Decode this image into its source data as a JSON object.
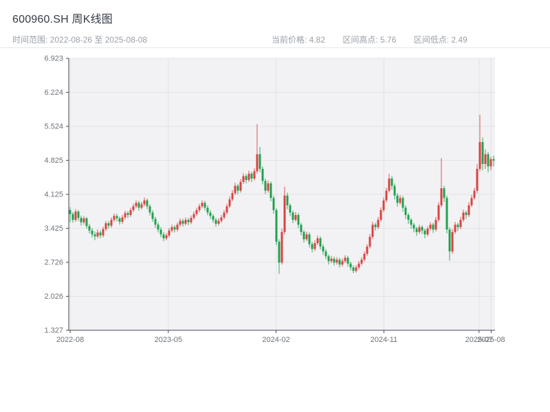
{
  "header": {
    "title": "600960.SH 周K线图",
    "time_range": "时间范围: 2022-08-26 至 2025-08-08",
    "current_price": "当前价格: 4.82",
    "range_high": "区间高点: 5.76",
    "range_low": "区间低点: 2.49"
  },
  "chart_data": {
    "type": "candlestick",
    "title": "600960.SH 周K线图",
    "symbol": "600960.SH",
    "period": "weekly",
    "start_date": "2022-08-26",
    "end_date": "2025-08-08",
    "current_price": 4.82,
    "range_high": 5.76,
    "range_low": 2.49,
    "xlabel": "",
    "ylabel": "",
    "grid": true,
    "legend": "none",
    "ylim": [
      1.327,
      6.923
    ],
    "y_ticks": [
      6.923,
      6.224,
      5.524,
      4.825,
      4.125,
      3.425,
      2.726,
      2.026,
      1.327
    ],
    "x_ticks": [
      {
        "label": "2022-08",
        "week": 0
      },
      {
        "label": "2023-05",
        "week": 35.7
      },
      {
        "label": "2024-02",
        "week": 74.9
      },
      {
        "label": "2024-11",
        "week": 114.1
      },
      {
        "label": "2025-07",
        "week": 148.7
      },
      {
        "label": "2025-08",
        "week": 153.1
      }
    ],
    "colors": {
      "up": "#da4242",
      "down": "#1fa14d",
      "background": "#f2f2f4",
      "grid": "#e2e2e6",
      "axis": "#44484e",
      "tick_label": "#6d7278"
    },
    "candles_format": [
      "open",
      "high",
      "low",
      "close"
    ],
    "candles": [
      [
        3.8,
        3.86,
        3.55,
        3.72
      ],
      [
        3.72,
        3.76,
        3.54,
        3.6
      ],
      [
        3.6,
        3.82,
        3.56,
        3.77
      ],
      [
        3.77,
        3.8,
        3.58,
        3.64
      ],
      [
        3.64,
        3.69,
        3.48,
        3.55
      ],
      [
        3.55,
        3.68,
        3.5,
        3.63
      ],
      [
        3.63,
        3.66,
        3.42,
        3.47
      ],
      [
        3.47,
        3.52,
        3.32,
        3.38
      ],
      [
        3.38,
        3.43,
        3.24,
        3.3
      ],
      [
        3.3,
        3.36,
        3.18,
        3.26
      ],
      [
        3.26,
        3.4,
        3.22,
        3.34
      ],
      [
        3.34,
        3.38,
        3.22,
        3.28
      ],
      [
        3.28,
        3.46,
        3.24,
        3.41
      ],
      [
        3.41,
        3.58,
        3.37,
        3.53
      ],
      [
        3.53,
        3.57,
        3.42,
        3.48
      ],
      [
        3.48,
        3.65,
        3.44,
        3.6
      ],
      [
        3.6,
        3.73,
        3.56,
        3.68
      ],
      [
        3.68,
        3.72,
        3.57,
        3.63
      ],
      [
        3.63,
        3.67,
        3.5,
        3.56
      ],
      [
        3.56,
        3.7,
        3.52,
        3.65
      ],
      [
        3.65,
        3.79,
        3.61,
        3.74
      ],
      [
        3.74,
        3.78,
        3.64,
        3.7
      ],
      [
        3.7,
        3.85,
        3.66,
        3.8
      ],
      [
        3.8,
        3.93,
        3.76,
        3.88
      ],
      [
        3.88,
        4.0,
        3.84,
        3.95
      ],
      [
        3.95,
        3.99,
        3.79,
        3.85
      ],
      [
        3.85,
        3.97,
        3.81,
        3.92
      ],
      [
        3.92,
        4.06,
        3.88,
        4.0
      ],
      [
        4.0,
        4.04,
        3.82,
        3.88
      ],
      [
        3.88,
        3.92,
        3.69,
        3.75
      ],
      [
        3.75,
        3.8,
        3.56,
        3.62
      ],
      [
        3.62,
        3.66,
        3.44,
        3.5
      ],
      [
        3.5,
        3.55,
        3.34,
        3.4
      ],
      [
        3.4,
        3.45,
        3.24,
        3.3
      ],
      [
        3.3,
        3.35,
        3.16,
        3.22
      ],
      [
        3.22,
        3.33,
        3.18,
        3.28
      ],
      [
        3.28,
        3.43,
        3.24,
        3.38
      ],
      [
        3.38,
        3.5,
        3.34,
        3.45
      ],
      [
        3.45,
        3.49,
        3.34,
        3.4
      ],
      [
        3.4,
        3.55,
        3.36,
        3.5
      ],
      [
        3.5,
        3.63,
        3.46,
        3.58
      ],
      [
        3.58,
        3.62,
        3.46,
        3.52
      ],
      [
        3.52,
        3.65,
        3.48,
        3.6
      ],
      [
        3.6,
        3.64,
        3.49,
        3.55
      ],
      [
        3.55,
        3.69,
        3.51,
        3.64
      ],
      [
        3.64,
        3.77,
        3.6,
        3.72
      ],
      [
        3.72,
        3.85,
        3.68,
        3.8
      ],
      [
        3.8,
        3.93,
        3.76,
        3.88
      ],
      [
        3.88,
        4.0,
        3.84,
        3.95
      ],
      [
        3.95,
        3.99,
        3.79,
        3.85
      ],
      [
        3.85,
        3.9,
        3.69,
        3.75
      ],
      [
        3.75,
        3.8,
        3.62,
        3.68
      ],
      [
        3.68,
        3.72,
        3.54,
        3.6
      ],
      [
        3.6,
        3.64,
        3.46,
        3.52
      ],
      [
        3.52,
        3.63,
        3.48,
        3.58
      ],
      [
        3.58,
        3.7,
        3.54,
        3.65
      ],
      [
        3.65,
        3.8,
        3.61,
        3.75
      ],
      [
        3.75,
        3.93,
        3.71,
        3.88
      ],
      [
        3.88,
        4.08,
        3.84,
        4.02
      ],
      [
        4.02,
        4.21,
        3.98,
        4.15
      ],
      [
        4.15,
        4.36,
        4.11,
        4.3
      ],
      [
        4.3,
        4.34,
        4.13,
        4.2
      ],
      [
        4.2,
        4.44,
        4.16,
        4.38
      ],
      [
        4.38,
        4.56,
        4.34,
        4.5
      ],
      [
        4.5,
        4.54,
        4.35,
        4.42
      ],
      [
        4.42,
        4.61,
        4.38,
        4.55
      ],
      [
        4.55,
        4.59,
        4.38,
        4.45
      ],
      [
        4.45,
        4.66,
        4.41,
        4.6
      ],
      [
        4.6,
        5.57,
        4.55,
        4.95
      ],
      [
        4.95,
        5.1,
        4.58,
        4.65
      ],
      [
        4.65,
        4.7,
        4.33,
        4.4
      ],
      [
        4.4,
        4.45,
        4.13,
        4.2
      ],
      [
        4.2,
        4.41,
        4.16,
        4.35
      ],
      [
        4.35,
        4.39,
        3.98,
        4.05
      ],
      [
        4.05,
        4.1,
        3.73,
        3.8
      ],
      [
        3.8,
        3.84,
        3.08,
        3.15
      ],
      [
        3.15,
        3.2,
        2.49,
        2.72
      ],
      [
        2.72,
        3.42,
        2.68,
        3.35
      ],
      [
        3.35,
        4.28,
        3.3,
        4.1
      ],
      [
        4.1,
        4.16,
        3.82,
        3.9
      ],
      [
        3.9,
        3.94,
        3.68,
        3.75
      ],
      [
        3.75,
        3.79,
        3.53,
        3.6
      ],
      [
        3.6,
        3.76,
        3.56,
        3.7
      ],
      [
        3.7,
        3.74,
        3.43,
        3.5
      ],
      [
        3.5,
        3.54,
        3.28,
        3.35
      ],
      [
        3.35,
        3.39,
        3.13,
        3.2
      ],
      [
        3.2,
        3.36,
        3.16,
        3.3
      ],
      [
        3.3,
        3.34,
        3.03,
        3.1
      ],
      [
        3.1,
        3.15,
        2.93,
        3.0
      ],
      [
        3.0,
        3.18,
        2.96,
        3.12
      ],
      [
        3.12,
        3.28,
        3.08,
        3.22
      ],
      [
        3.22,
        3.26,
        2.99,
        3.05
      ],
      [
        3.05,
        3.1,
        2.88,
        2.95
      ],
      [
        2.95,
        3.0,
        2.79,
        2.85
      ],
      [
        2.85,
        2.89,
        2.68,
        2.75
      ],
      [
        2.75,
        2.86,
        2.71,
        2.8
      ],
      [
        2.8,
        2.84,
        2.66,
        2.72
      ],
      [
        2.72,
        2.83,
        2.68,
        2.78
      ],
      [
        2.78,
        2.82,
        2.62,
        2.68
      ],
      [
        2.68,
        2.8,
        2.64,
        2.75
      ],
      [
        2.75,
        2.87,
        2.71,
        2.82
      ],
      [
        2.82,
        2.86,
        2.64,
        2.7
      ],
      [
        2.7,
        2.74,
        2.56,
        2.62
      ],
      [
        2.62,
        2.66,
        2.5,
        2.55
      ],
      [
        2.55,
        2.67,
        2.51,
        2.62
      ],
      [
        2.62,
        2.75,
        2.58,
        2.7
      ],
      [
        2.7,
        2.83,
        2.66,
        2.78
      ],
      [
        2.78,
        2.95,
        2.74,
        2.9
      ],
      [
        2.9,
        3.1,
        2.86,
        3.05
      ],
      [
        3.05,
        3.31,
        3.01,
        3.25
      ],
      [
        3.25,
        3.56,
        3.21,
        3.5
      ],
      [
        3.5,
        3.54,
        3.38,
        3.45
      ],
      [
        3.45,
        3.66,
        3.41,
        3.6
      ],
      [
        3.6,
        3.86,
        3.56,
        3.8
      ],
      [
        3.8,
        4.06,
        3.76,
        4.0
      ],
      [
        4.0,
        4.26,
        3.96,
        4.2
      ],
      [
        4.2,
        4.55,
        4.16,
        4.45
      ],
      [
        4.45,
        4.5,
        4.22,
        4.3
      ],
      [
        4.3,
        4.35,
        4.02,
        4.1
      ],
      [
        4.1,
        4.15,
        3.87,
        3.95
      ],
      [
        3.95,
        4.11,
        3.91,
        4.05
      ],
      [
        4.05,
        4.09,
        3.77,
        3.85
      ],
      [
        3.85,
        3.9,
        3.62,
        3.7
      ],
      [
        3.7,
        3.74,
        3.52,
        3.6
      ],
      [
        3.6,
        3.64,
        3.42,
        3.5
      ],
      [
        3.5,
        3.54,
        3.34,
        3.42
      ],
      [
        3.42,
        3.46,
        3.27,
        3.35
      ],
      [
        3.35,
        3.5,
        3.31,
        3.45
      ],
      [
        3.45,
        3.49,
        3.31,
        3.38
      ],
      [
        3.38,
        3.42,
        3.22,
        3.3
      ],
      [
        3.3,
        3.47,
        3.26,
        3.42
      ],
      [
        3.42,
        3.55,
        3.38,
        3.5
      ],
      [
        3.5,
        3.54,
        3.33,
        3.4
      ],
      [
        3.4,
        3.66,
        3.36,
        3.6
      ],
      [
        3.6,
        3.96,
        3.56,
        3.9
      ],
      [
        3.9,
        4.87,
        3.86,
        4.25
      ],
      [
        4.25,
        4.3,
        3.97,
        4.05
      ],
      [
        4.05,
        4.1,
        3.32,
        3.4
      ],
      [
        3.4,
        3.45,
        2.76,
        2.95
      ],
      [
        2.95,
        3.41,
        2.9,
        3.35
      ],
      [
        3.35,
        3.56,
        3.31,
        3.5
      ],
      [
        3.5,
        3.54,
        3.37,
        3.45
      ],
      [
        3.45,
        3.66,
        3.41,
        3.6
      ],
      [
        3.6,
        3.81,
        3.56,
        3.75
      ],
      [
        3.75,
        3.79,
        3.62,
        3.7
      ],
      [
        3.7,
        3.96,
        3.66,
        3.9
      ],
      [
        3.9,
        4.11,
        3.86,
        4.05
      ],
      [
        4.05,
        4.26,
        4.01,
        4.2
      ],
      [
        4.2,
        4.75,
        4.15,
        4.65
      ],
      [
        4.65,
        5.76,
        4.6,
        5.2
      ],
      [
        5.2,
        5.3,
        4.62,
        4.75
      ],
      [
        4.75,
        5.05,
        4.65,
        4.95
      ],
      [
        4.95,
        5.0,
        4.58,
        4.7
      ],
      [
        4.7,
        4.9,
        4.62,
        4.85
      ],
      [
        4.85,
        4.92,
        4.7,
        4.82
      ]
    ]
  }
}
